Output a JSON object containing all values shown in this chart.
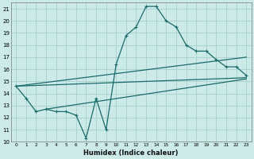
{
  "xlabel": "Humidex (Indice chaleur)",
  "xlim": [
    -0.5,
    23.5
  ],
  "ylim": [
    10,
    21.5
  ],
  "xticks": [
    0,
    1,
    2,
    3,
    4,
    5,
    6,
    7,
    8,
    9,
    10,
    11,
    12,
    13,
    14,
    15,
    16,
    17,
    18,
    19,
    20,
    21,
    22,
    23
  ],
  "yticks": [
    10,
    11,
    12,
    13,
    14,
    15,
    16,
    17,
    18,
    19,
    20,
    21
  ],
  "bg_color": "#cceae7",
  "grid_color": "#aad4d0",
  "line_color": "#1a6b6b",
  "line1_x": [
    0,
    1,
    2,
    3,
    4,
    5,
    6,
    7,
    8,
    9,
    10,
    11,
    12,
    13,
    14,
    15,
    16,
    17,
    18,
    19,
    20,
    21,
    22,
    23
  ],
  "line1_y": [
    14.6,
    13.6,
    12.5,
    12.7,
    12.5,
    12.5,
    12.2,
    10.3,
    13.6,
    11.0,
    16.4,
    18.8,
    19.5,
    21.2,
    21.2,
    20.0,
    19.5,
    18.0,
    17.5,
    17.5,
    16.8,
    16.2,
    16.2,
    15.5
  ],
  "line2_x": [
    0,
    23
  ],
  "line2_y": [
    14.6,
    15.3
  ],
  "line3_x": [
    0,
    23
  ],
  "line3_y": [
    14.6,
    17.0
  ],
  "line4_x": [
    3,
    23
  ],
  "line4_y": [
    12.7,
    15.2
  ]
}
